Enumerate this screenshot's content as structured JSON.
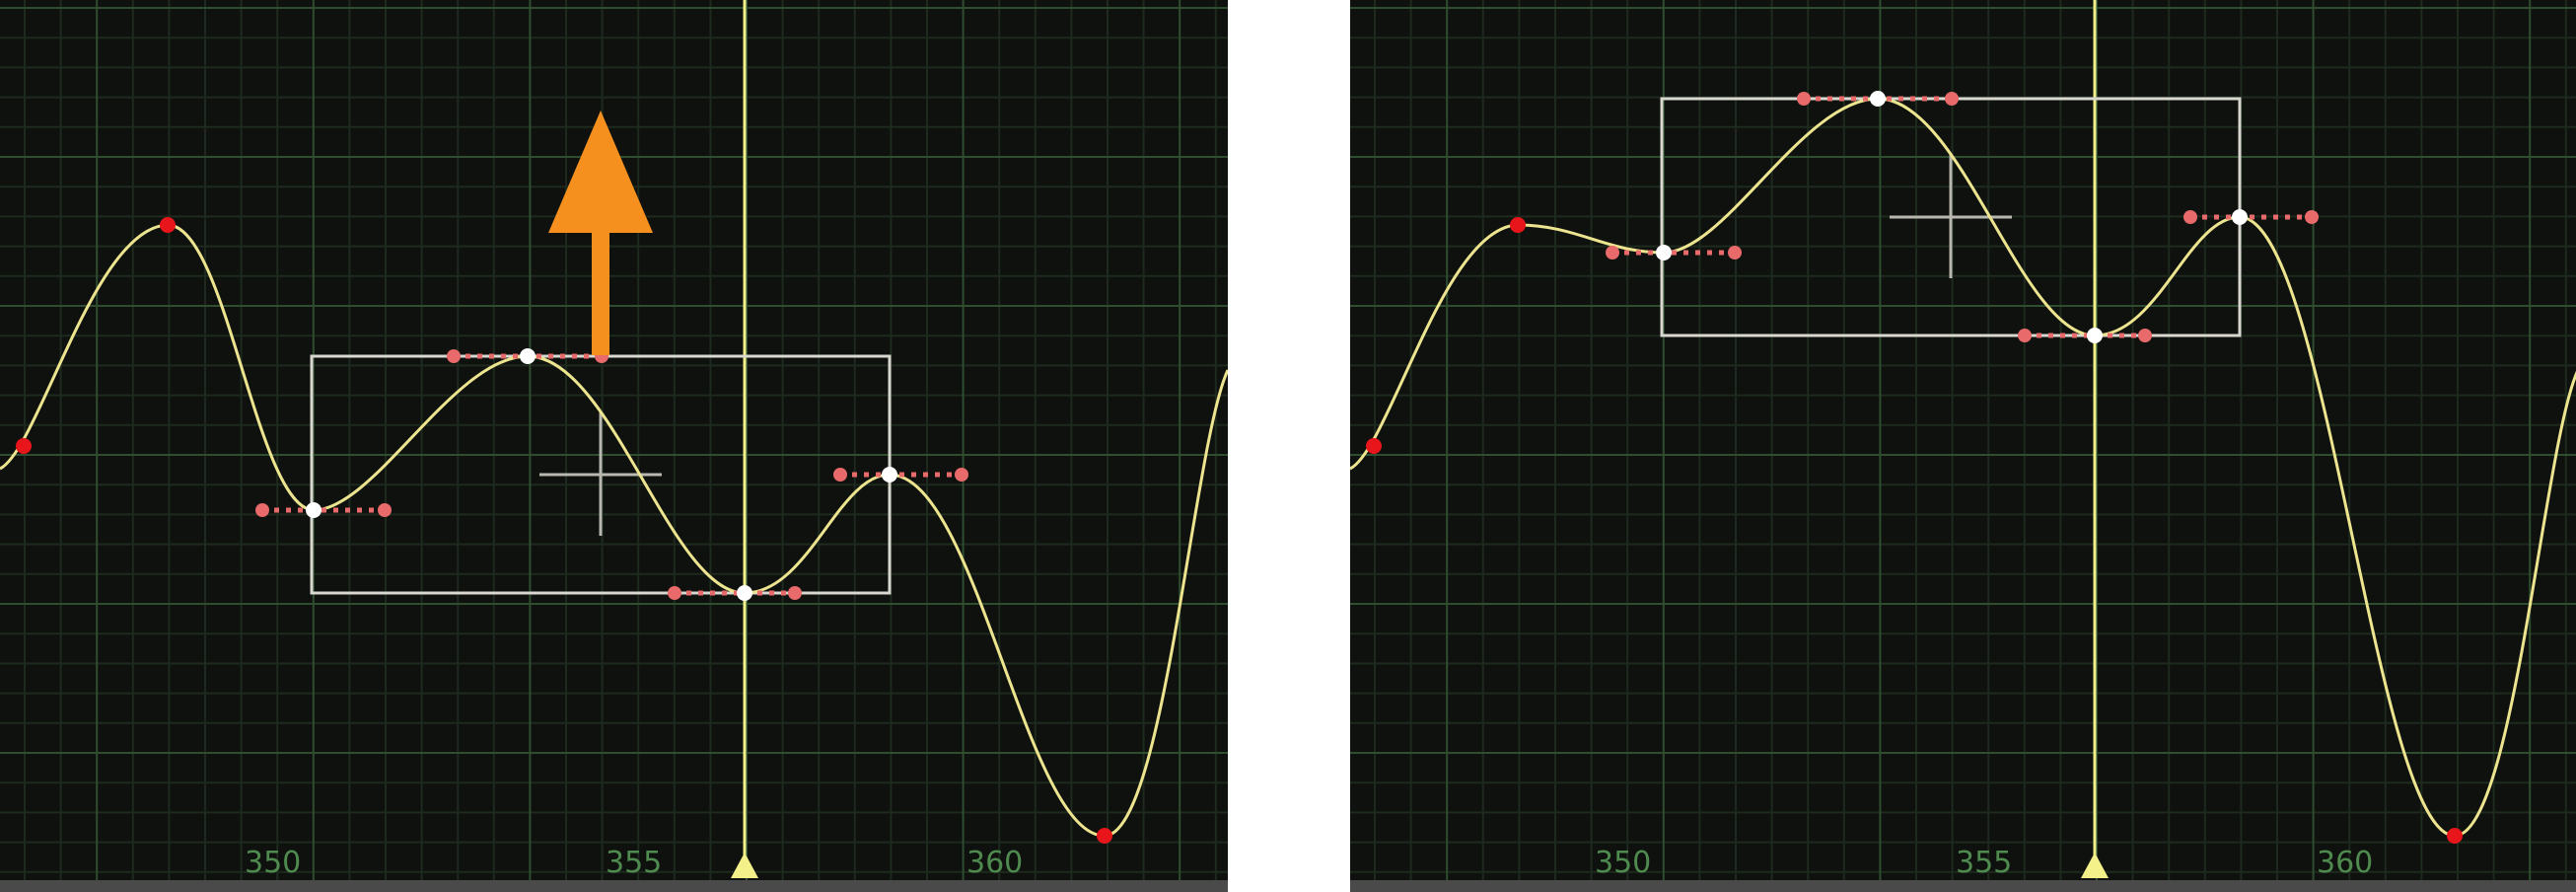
{
  "colors": {
    "background": "#0f110f",
    "grid_minor": "#1d2a1d",
    "grid_major": "#2f4d2f",
    "curve": "#ece48e",
    "playhead": "#f4f08a",
    "key_unselected": "#e8151b",
    "key_selected": "#ffffff",
    "tangent": "#e86a6a",
    "selection_box": "#d8d8d0",
    "arrow": "#f5901f",
    "bottom_bar": "#4a4a4a"
  },
  "timeline": {
    "tick_labels": [
      "350",
      "355",
      "360"
    ]
  },
  "panels": [
    {
      "id": "before",
      "drag_arrow_icon": "arrow-up-icon"
    },
    {
      "id": "after"
    }
  ]
}
